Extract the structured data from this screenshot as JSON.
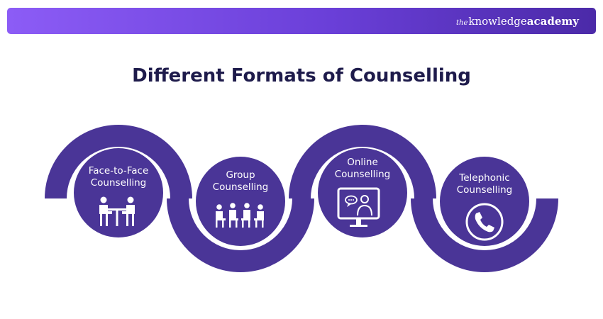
{
  "header": {
    "logo_the": "the",
    "logo_knowledge": "knowledge",
    "logo_academy": "academy",
    "accent": "#7b4fe8"
  },
  "title": "Different Formats of Counselling",
  "colors": {
    "ribbon": "#4a3597",
    "title": "#1e1b4b"
  },
  "formats": [
    {
      "line1": "Face-to-Face",
      "line2": "Counselling",
      "icon": "two-people-at-table-icon"
    },
    {
      "line1": "Group",
      "line2": "Counselling",
      "icon": "group-meeting-icon"
    },
    {
      "line1": "Online",
      "line2": "Counselling",
      "icon": "monitor-video-call-icon"
    },
    {
      "line1": "Telephonic",
      "line2": "Counselling",
      "icon": "phone-icon"
    }
  ]
}
